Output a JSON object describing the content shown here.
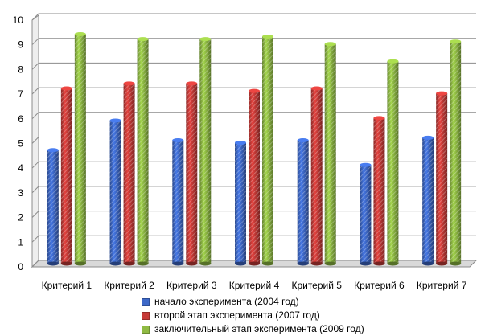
{
  "chart_data": {
    "type": "bar",
    "title": "",
    "xlabel": "",
    "ylabel": "",
    "ylim": [
      0,
      10
    ],
    "yticks": [
      "0",
      "1",
      "2",
      "3",
      "4",
      "5",
      "6",
      "7",
      "8",
      "9",
      "10"
    ],
    "grid": true,
    "legend_position": "bottom",
    "categories": [
      "Критерий 1",
      "Критерий 2",
      "Критерий 3",
      "Критерий 4",
      "Критерий 5",
      "Критерий 6",
      "Критерий 7"
    ],
    "series": [
      {
        "name": "начало эксперимента (2004 год)",
        "color": "#3d68c8",
        "values": [
          4.6,
          5.8,
          5.0,
          4.9,
          5.0,
          4.0,
          5.1
        ]
      },
      {
        "name": "второй этап эксперимента (2007 год)",
        "color": "#c63a37",
        "values": [
          7.1,
          7.3,
          7.3,
          7.0,
          7.1,
          5.9,
          6.9
        ]
      },
      {
        "name": "заключительный этап эксперимента (2009 год)",
        "color": "#8fba43",
        "values": [
          9.3,
          9.1,
          9.1,
          9.2,
          8.9,
          8.2,
          9.0
        ]
      }
    ]
  }
}
